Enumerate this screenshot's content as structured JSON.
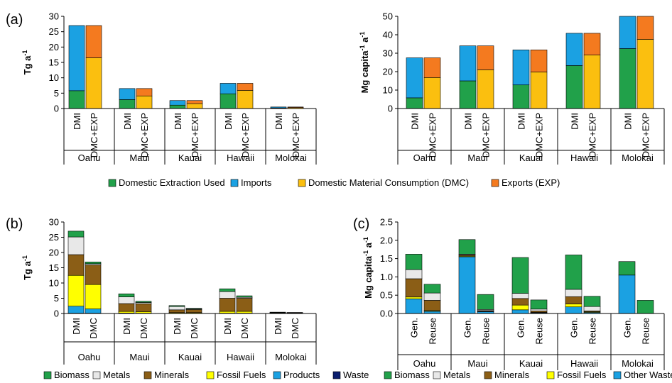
{
  "figure": {
    "legend_a": [
      {
        "label": "Domestic Extraction Used",
        "color": "#21a14a"
      },
      {
        "label": "Imports",
        "color": "#1ba1e2"
      },
      {
        "label": "Domestic Material Consumption (DMC)",
        "color": "#fbbf0f"
      },
      {
        "label": "Exports (EXP)",
        "color": "#f47a1f"
      }
    ],
    "legend_b": [
      {
        "label": "Biomass",
        "color": "#21a14a"
      },
      {
        "label": "Metals",
        "color": "#e8e8e8"
      },
      {
        "label": "Minerals",
        "color": "#8b5e16"
      },
      {
        "label": "Fossil Fuels",
        "color": "#ffff00"
      },
      {
        "label": "Products",
        "color": "#1ba1e2"
      },
      {
        "label": "Waste",
        "color": "#0b1e6e"
      }
    ],
    "legend_c": [
      {
        "label": "Biomass",
        "color": "#21a14a"
      },
      {
        "label": "Metals",
        "color": "#e8e8e8"
      },
      {
        "label": "Minerals",
        "color": "#8b5e16"
      },
      {
        "label": "Fossil Fuels",
        "color": "#ffff00"
      },
      {
        "label": "Other Waste",
        "color": "#1ba1e2"
      }
    ]
  },
  "chart_data": [
    {
      "panel": "(a)",
      "type": "bar",
      "stacked": true,
      "ylabel": "Tg a",
      "ylabel_sup": "-1",
      "ylim": [
        0,
        30
      ],
      "yticks": [
        0,
        5,
        10,
        15,
        20,
        25,
        30
      ],
      "tick_decimals": 0,
      "groups": [
        "Oahu",
        "Maui",
        "Kauai",
        "Hawaii",
        "Molokai"
      ],
      "bar_labels": [
        "DMI",
        "DMC+EXP"
      ],
      "rotate_bar_labels": true,
      "bars": [
        [
          [
            {
              "c": "#21a14a",
              "v": 5.8
            },
            {
              "c": "#1ba1e2",
              "v": 21.2
            }
          ],
          [
            {
              "c": "#fbbf0f",
              "v": 16.5
            },
            {
              "c": "#f47a1f",
              "v": 10.5
            }
          ]
        ],
        [
          [
            {
              "c": "#21a14a",
              "v": 2.9
            },
            {
              "c": "#1ba1e2",
              "v": 3.6
            }
          ],
          [
            {
              "c": "#fbbf0f",
              "v": 4.1
            },
            {
              "c": "#f47a1f",
              "v": 2.4
            }
          ]
        ],
        [
          [
            {
              "c": "#21a14a",
              "v": 1.1
            },
            {
              "c": "#1ba1e2",
              "v": 1.5
            }
          ],
          [
            {
              "c": "#fbbf0f",
              "v": 1.6
            },
            {
              "c": "#f47a1f",
              "v": 1.0
            }
          ]
        ],
        [
          [
            {
              "c": "#21a14a",
              "v": 4.8
            },
            {
              "c": "#1ba1e2",
              "v": 3.4
            }
          ],
          [
            {
              "c": "#fbbf0f",
              "v": 5.9
            },
            {
              "c": "#f47a1f",
              "v": 2.3
            }
          ]
        ],
        [
          [
            {
              "c": "#21a14a",
              "v": 0.2
            },
            {
              "c": "#1ba1e2",
              "v": 0.3
            }
          ],
          [
            {
              "c": "#fbbf0f",
              "v": 0.3
            },
            {
              "c": "#f47a1f",
              "v": 0.2
            }
          ]
        ]
      ]
    },
    {
      "panel": "",
      "type": "bar",
      "stacked": true,
      "ylabel": "Mg capita",
      "ylabel_sup": "-1",
      "ylabel_rest": " a",
      "ylabel_sup2": "-1",
      "ylim": [
        0,
        50
      ],
      "yticks": [
        0,
        10,
        20,
        30,
        40,
        50
      ],
      "tick_decimals": 0,
      "groups": [
        "Oahu",
        "Maui",
        "Kauai",
        "Hawaii",
        "Molokai"
      ],
      "bar_labels": [
        "DMI",
        "DMC+EXP"
      ],
      "rotate_bar_labels": true,
      "bars": [
        [
          [
            {
              "c": "#21a14a",
              "v": 5.8
            },
            {
              "c": "#1ba1e2",
              "v": 21.7
            }
          ],
          [
            {
              "c": "#fbbf0f",
              "v": 16.8
            },
            {
              "c": "#f47a1f",
              "v": 10.7
            }
          ]
        ],
        [
          [
            {
              "c": "#21a14a",
              "v": 15.0
            },
            {
              "c": "#1ba1e2",
              "v": 19.0
            }
          ],
          [
            {
              "c": "#fbbf0f",
              "v": 21.0
            },
            {
              "c": "#f47a1f",
              "v": 13.0
            }
          ]
        ],
        [
          [
            {
              "c": "#21a14a",
              "v": 12.8
            },
            {
              "c": "#1ba1e2",
              "v": 19.0
            }
          ],
          [
            {
              "c": "#fbbf0f",
              "v": 19.8
            },
            {
              "c": "#f47a1f",
              "v": 12.0
            }
          ]
        ],
        [
          [
            {
              "c": "#21a14a",
              "v": 23.3
            },
            {
              "c": "#1ba1e2",
              "v": 17.5
            }
          ],
          [
            {
              "c": "#fbbf0f",
              "v": 29.0
            },
            {
              "c": "#f47a1f",
              "v": 11.8
            }
          ]
        ],
        [
          [
            {
              "c": "#21a14a",
              "v": 32.5
            },
            {
              "c": "#1ba1e2",
              "v": 17.5
            }
          ],
          [
            {
              "c": "#fbbf0f",
              "v": 37.5
            },
            {
              "c": "#f47a1f",
              "v": 12.5
            }
          ]
        ]
      ]
    },
    {
      "panel": "(b)",
      "type": "bar",
      "stacked": true,
      "ylabel": "Tg a",
      "ylabel_sup": "-1",
      "ylim": [
        0,
        30
      ],
      "yticks": [
        0,
        5,
        10,
        15,
        20,
        25,
        30
      ],
      "tick_decimals": 0,
      "groups": [
        "Oahu",
        "Maui",
        "Kauai",
        "Hawaii",
        "Molokai"
      ],
      "bar_labels": [
        "DMI",
        "DMC"
      ],
      "rotate_bar_labels": true,
      "bars": [
        [
          [
            {
              "c": "#0b1e6e",
              "v": 0.1
            },
            {
              "c": "#1ba1e2",
              "v": 2.3
            },
            {
              "c": "#ffff00",
              "v": 10.1
            },
            {
              "c": "#8b5e16",
              "v": 6.8
            },
            {
              "c": "#e8e8e8",
              "v": 5.8
            },
            {
              "c": "#21a14a",
              "v": 1.9
            }
          ],
          [
            {
              "c": "#0b1e6e",
              "v": 0.1
            },
            {
              "c": "#1ba1e2",
              "v": 1.4
            },
            {
              "c": "#ffff00",
              "v": 8.0
            },
            {
              "c": "#8b5e16",
              "v": 6.4
            },
            {
              "c": "#e8e8e8",
              "v": 0.4
            },
            {
              "c": "#21a14a",
              "v": 0.6
            }
          ]
        ],
        [
          [
            {
              "c": "#0b1e6e",
              "v": 0.05
            },
            {
              "c": "#1ba1e2",
              "v": 0.1
            },
            {
              "c": "#ffff00",
              "v": 0.5
            },
            {
              "c": "#8b5e16",
              "v": 2.6
            },
            {
              "c": "#e8e8e8",
              "v": 2.2
            },
            {
              "c": "#21a14a",
              "v": 1.0
            }
          ],
          [
            {
              "c": "#0b1e6e",
              "v": 0.05
            },
            {
              "c": "#1ba1e2",
              "v": 0.05
            },
            {
              "c": "#ffff00",
              "v": 0.5
            },
            {
              "c": "#8b5e16",
              "v": 2.6
            },
            {
              "c": "#e8e8e8",
              "v": 0.4
            },
            {
              "c": "#21a14a",
              "v": 0.4
            }
          ]
        ],
        [
          [
            {
              "c": "#0b1e6e",
              "v": 0.05
            },
            {
              "c": "#1ba1e2",
              "v": 0.05
            },
            {
              "c": "#ffff00",
              "v": 0.2
            },
            {
              "c": "#8b5e16",
              "v": 0.9
            },
            {
              "c": "#e8e8e8",
              "v": 1.1
            },
            {
              "c": "#21a14a",
              "v": 0.3
            }
          ],
          [
            {
              "c": "#0b1e6e",
              "v": 0.05
            },
            {
              "c": "#1ba1e2",
              "v": 0.05
            },
            {
              "c": "#ffff00",
              "v": 0.2
            },
            {
              "c": "#8b5e16",
              "v": 1.0
            },
            {
              "c": "#e8e8e8",
              "v": 0.2
            },
            {
              "c": "#21a14a",
              "v": 0.2
            }
          ]
        ],
        [
          [
            {
              "c": "#0b1e6e",
              "v": 0.05
            },
            {
              "c": "#1ba1e2",
              "v": 0.05
            },
            {
              "c": "#ffff00",
              "v": 0.6
            },
            {
              "c": "#8b5e16",
              "v": 4.3
            },
            {
              "c": "#e8e8e8",
              "v": 2.2
            },
            {
              "c": "#21a14a",
              "v": 0.9
            }
          ],
          [
            {
              "c": "#0b1e6e",
              "v": 0.05
            },
            {
              "c": "#1ba1e2",
              "v": 0.05
            },
            {
              "c": "#ffff00",
              "v": 0.6
            },
            {
              "c": "#8b5e16",
              "v": 4.3
            },
            {
              "c": "#e8e8e8",
              "v": 0.3
            },
            {
              "c": "#21a14a",
              "v": 0.5
            }
          ]
        ],
        [
          [
            {
              "c": "#0b1e6e",
              "v": 0.02
            },
            {
              "c": "#1ba1e2",
              "v": 0.02
            },
            {
              "c": "#ffff00",
              "v": 0.05
            },
            {
              "c": "#8b5e16",
              "v": 0.15
            },
            {
              "c": "#e8e8e8",
              "v": 0.1
            },
            {
              "c": "#21a14a",
              "v": 0.1
            }
          ],
          [
            {
              "c": "#0b1e6e",
              "v": 0.02
            },
            {
              "c": "#1ba1e2",
              "v": 0.02
            },
            {
              "c": "#ffff00",
              "v": 0.05
            },
            {
              "c": "#8b5e16",
              "v": 0.15
            },
            {
              "c": "#e8e8e8",
              "v": 0.05
            },
            {
              "c": "#21a14a",
              "v": 0.05
            }
          ]
        ]
      ]
    },
    {
      "panel": "(c)",
      "type": "bar",
      "stacked": true,
      "ylabel": "Mg capita",
      "ylabel_sup": "-1",
      "ylabel_rest": " a",
      "ylabel_sup2": "-1",
      "ylim": [
        0,
        2.5
      ],
      "yticks": [
        0,
        0.5,
        1.0,
        1.5,
        2.0,
        2.5
      ],
      "tick_decimals": 1,
      "groups": [
        "Oahu",
        "Maui",
        "Kauai",
        "Hawaii",
        "Molokai"
      ],
      "bar_labels": [
        "Gen.",
        "Reuse"
      ],
      "rotate_bar_labels": true,
      "bars": [
        [
          [
            {
              "c": "#1ba1e2",
              "v": 0.4
            },
            {
              "c": "#ffff00",
              "v": 0.05
            },
            {
              "c": "#8b5e16",
              "v": 0.5
            },
            {
              "c": "#e8e8e8",
              "v": 0.25
            },
            {
              "c": "#21a14a",
              "v": 0.42
            }
          ],
          [
            {
              "c": "#1ba1e2",
              "v": 0.06
            },
            {
              "c": "#ffff00",
              "v": 0.02
            },
            {
              "c": "#8b5e16",
              "v": 0.28
            },
            {
              "c": "#e8e8e8",
              "v": 0.2
            },
            {
              "c": "#21a14a",
              "v": 0.24
            }
          ]
        ],
        [
          [
            {
              "c": "#1ba1e2",
              "v": 1.55
            },
            {
              "c": "#ffff00",
              "v": 0.02
            },
            {
              "c": "#8b5e16",
              "v": 0.03
            },
            {
              "c": "#e8e8e8",
              "v": 0.02
            },
            {
              "c": "#21a14a",
              "v": 0.4
            }
          ],
          [
            {
              "c": "#1ba1e2",
              "v": 0.05
            },
            {
              "c": "#ffff00",
              "v": 0.01
            },
            {
              "c": "#8b5e16",
              "v": 0.02
            },
            {
              "c": "#e8e8e8",
              "v": 0.03
            },
            {
              "c": "#21a14a",
              "v": 0.41
            }
          ]
        ],
        [
          [
            {
              "c": "#1ba1e2",
              "v": 0.1
            },
            {
              "c": "#ffff00",
              "v": 0.13
            },
            {
              "c": "#8b5e16",
              "v": 0.18
            },
            {
              "c": "#e8e8e8",
              "v": 0.14
            },
            {
              "c": "#21a14a",
              "v": 0.98
            }
          ],
          [
            {
              "c": "#1ba1e2",
              "v": 0.02
            },
            {
              "c": "#ffff00",
              "v": 0.01
            },
            {
              "c": "#8b5e16",
              "v": 0.04
            },
            {
              "c": "#e8e8e8",
              "v": 0.05
            },
            {
              "c": "#21a14a",
              "v": 0.25
            }
          ]
        ],
        [
          [
            {
              "c": "#1ba1e2",
              "v": 0.18
            },
            {
              "c": "#ffff00",
              "v": 0.08
            },
            {
              "c": "#8b5e16",
              "v": 0.2
            },
            {
              "c": "#e8e8e8",
              "v": 0.2
            },
            {
              "c": "#21a14a",
              "v": 0.94
            }
          ],
          [
            {
              "c": "#1ba1e2",
              "v": 0.03
            },
            {
              "c": "#ffff00",
              "v": 0.02
            },
            {
              "c": "#8b5e16",
              "v": 0.02
            },
            {
              "c": "#e8e8e8",
              "v": 0.12
            },
            {
              "c": "#21a14a",
              "v": 0.28
            }
          ]
        ],
        [
          [
            {
              "c": "#1ba1e2",
              "v": 1.05
            },
            {
              "c": "#ffff00",
              "v": 0.0
            },
            {
              "c": "#8b5e16",
              "v": 0.0
            },
            {
              "c": "#e8e8e8",
              "v": 0.0
            },
            {
              "c": "#21a14a",
              "v": 0.37
            }
          ],
          [
            {
              "c": "#1ba1e2",
              "v": 0.0
            },
            {
              "c": "#ffff00",
              "v": 0.0
            },
            {
              "c": "#8b5e16",
              "v": 0.0
            },
            {
              "c": "#e8e8e8",
              "v": 0.0
            },
            {
              "c": "#21a14a",
              "v": 0.36
            }
          ]
        ]
      ]
    }
  ]
}
